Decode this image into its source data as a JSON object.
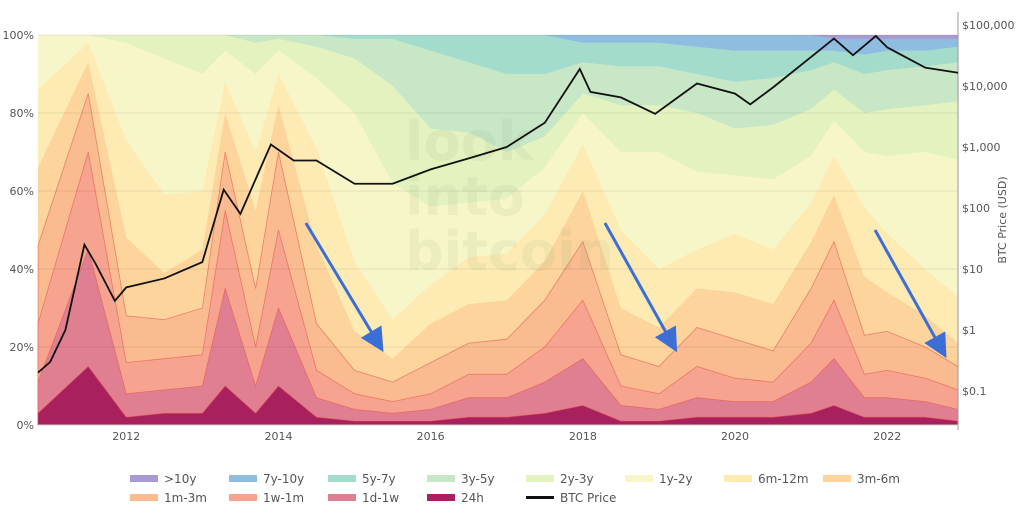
{
  "chart_data": {
    "type": "area",
    "stacked": true,
    "watermark": "look into bitcoin",
    "x_ticks": [
      "2012",
      "2014",
      "2016",
      "2018",
      "2020",
      "2022"
    ],
    "xlim": [
      2010.84,
      2022.93
    ],
    "y_left": {
      "ticks": [
        "0%",
        "20%",
        "40%",
        "60%",
        "80%",
        "100%"
      ],
      "range": [
        0,
        100
      ]
    },
    "y_right": {
      "label": "BTC Price (USD)",
      "scale": "log",
      "ticks": [
        "$0.1",
        "$1",
        "$10",
        "$100",
        "$1,000",
        "$10,000",
        "$100,000"
      ]
    },
    "grid": true,
    "legend_position": "bottom",
    "bands": [
      {
        "name": "24h",
        "color": "#a8215e"
      },
      {
        "name": "1d-1w",
        "color": "#e07f92"
      },
      {
        "name": "1w-1m",
        "color": "#f6a38f"
      },
      {
        "name": "1m-3m",
        "color": "#f9bb8f"
      },
      {
        "name": "3m-6m",
        "color": "#fcd49c"
      },
      {
        "name": "6m-12m",
        "color": "#fdebb3"
      },
      {
        "name": "1y-2y",
        "color": "#f7f6c9"
      },
      {
        "name": "2y-3y",
        "color": "#e4f2c0"
      },
      {
        "name": "3y-5y",
        "color": "#c7e7c6"
      },
      {
        "name": "5y-7y",
        "color": "#a3dbcc"
      },
      {
        "name": "7y-10y",
        "color": "#8fbde0"
      },
      {
        "name": ">10y",
        "color": "#a99bd2"
      }
    ],
    "dates": [
      2010.84,
      2011.5,
      2012.0,
      2012.5,
      2013.0,
      2013.3,
      2013.7,
      2014.0,
      2014.5,
      2015.0,
      2015.5,
      2016.0,
      2016.5,
      2017.0,
      2017.5,
      2018.0,
      2018.5,
      2019.0,
      2019.5,
      2020.0,
      2020.5,
      2021.0,
      2021.3,
      2021.7,
      2022.0,
      2022.5,
      2022.93
    ],
    "band_pct": [
      [
        3,
        8,
        15,
        20,
        20,
        20,
        14,
        0,
        0,
        0,
        0,
        0
      ],
      [
        15,
        30,
        25,
        15,
        8,
        5,
        2,
        0,
        0,
        0,
        0,
        0
      ],
      [
        2,
        6,
        8,
        12,
        20,
        25,
        25,
        2,
        0,
        0,
        0,
        0
      ],
      [
        3,
        6,
        8,
        10,
        12,
        20,
        35,
        6,
        0,
        0,
        0,
        0
      ],
      [
        3,
        7,
        8,
        12,
        15,
        15,
        30,
        10,
        0,
        0,
        0,
        0
      ],
      [
        10,
        25,
        20,
        15,
        10,
        8,
        8,
        4,
        0,
        0,
        0,
        0
      ],
      [
        3,
        7,
        10,
        15,
        20,
        15,
        20,
        8,
        2,
        0,
        0,
        0
      ],
      [
        10,
        20,
        20,
        20,
        12,
        8,
        6,
        3,
        1,
        0,
        0,
        0
      ],
      [
        2,
        5,
        7,
        12,
        20,
        25,
        18,
        8,
        3,
        0,
        0,
        0
      ],
      [
        1,
        3,
        4,
        6,
        10,
        18,
        38,
        14,
        5,
        1,
        0,
        0
      ],
      [
        1,
        2,
        3,
        5,
        6,
        10,
        35,
        25,
        12,
        1,
        0,
        0
      ],
      [
        1,
        3,
        4,
        8,
        10,
        10,
        20,
        20,
        20,
        4,
        0,
        0
      ],
      [
        2,
        5,
        6,
        8,
        10,
        12,
        14,
        18,
        18,
        7,
        0,
        0
      ],
      [
        2,
        5,
        6,
        9,
        10,
        12,
        14,
        12,
        20,
        10,
        0,
        0
      ],
      [
        3,
        8,
        9,
        12,
        10,
        12,
        12,
        8,
        16,
        10,
        0,
        0
      ],
      [
        5,
        12,
        15,
        15,
        13,
        12,
        8,
        5,
        8,
        5,
        2,
        0
      ],
      [
        1,
        4,
        5,
        8,
        12,
        20,
        20,
        12,
        10,
        6,
        2,
        0
      ],
      [
        1,
        3,
        4,
        7,
        10,
        15,
        30,
        12,
        10,
        6,
        2,
        0
      ],
      [
        2,
        5,
        8,
        10,
        10,
        10,
        20,
        15,
        10,
        7,
        3,
        0
      ],
      [
        2,
        4,
        6,
        10,
        12,
        15,
        15,
        12,
        12,
        8,
        4,
        0
      ],
      [
        2,
        4,
        5,
        8,
        12,
        14,
        18,
        14,
        12,
        7,
        4,
        0
      ],
      [
        3,
        8,
        10,
        14,
        12,
        10,
        12,
        12,
        10,
        5,
        4,
        0
      ],
      [
        5,
        12,
        15,
        15,
        12,
        10,
        9,
        8,
        7,
        3,
        3,
        1
      ],
      [
        2,
        5,
        6,
        10,
        15,
        18,
        14,
        10,
        10,
        5,
        4,
        1
      ],
      [
        2,
        5,
        7,
        10,
        10,
        15,
        20,
        12,
        10,
        5,
        3,
        1
      ],
      [
        2,
        4,
        6,
        8,
        8,
        12,
        30,
        12,
        10,
        4,
        3,
        1
      ],
      [
        1,
        3,
        5,
        6,
        6,
        12,
        35,
        15,
        10,
        4,
        2,
        1
      ]
    ],
    "btc_price": {
      "name": "BTC Price",
      "color": "#111111",
      "points": [
        [
          2010.84,
          0.2
        ],
        [
          2011.0,
          0.3
        ],
        [
          2011.2,
          1
        ],
        [
          2011.45,
          25
        ],
        [
          2011.6,
          12
        ],
        [
          2011.85,
          3
        ],
        [
          2012.0,
          5
        ],
        [
          2012.5,
          7
        ],
        [
          2013.0,
          13
        ],
        [
          2013.28,
          200
        ],
        [
          2013.5,
          80
        ],
        [
          2013.9,
          1100
        ],
        [
          2014.2,
          600
        ],
        [
          2014.5,
          600
        ],
        [
          2015.0,
          250
        ],
        [
          2015.5,
          250
        ],
        [
          2016.0,
          430
        ],
        [
          2016.5,
          650
        ],
        [
          2017.0,
          1000
        ],
        [
          2017.5,
          2500
        ],
        [
          2017.96,
          19000
        ],
        [
          2018.1,
          8000
        ],
        [
          2018.5,
          6500
        ],
        [
          2018.95,
          3500
        ],
        [
          2019.5,
          11000
        ],
        [
          2020.0,
          7500
        ],
        [
          2020.2,
          5000
        ],
        [
          2020.5,
          9500
        ],
        [
          2021.0,
          30000
        ],
        [
          2021.3,
          60000
        ],
        [
          2021.55,
          32000
        ],
        [
          2021.85,
          66000
        ],
        [
          2022.0,
          43000
        ],
        [
          2022.5,
          20000
        ],
        [
          2022.93,
          16500
        ]
      ]
    },
    "annotations": [
      {
        "type": "arrow",
        "color": "#3b6fd6",
        "from": [
          2014.36,
          51.8
        ],
        "to": [
          2015.34,
          20
        ]
      },
      {
        "type": "arrow",
        "color": "#3b6fd6",
        "from": [
          2018.29,
          51.8
        ],
        "to": [
          2019.2,
          20
        ]
      },
      {
        "type": "arrow",
        "color": "#3b6fd6",
        "from": [
          2021.84,
          50
        ],
        "to": [
          2022.74,
          18.5
        ]
      }
    ],
    "legend": [
      ">10y",
      "7y-10y",
      "5y-7y",
      "3y-5y",
      "2y-3y",
      "1y-2y",
      "6m-12m",
      "3m-6m",
      "1m-3m",
      "1w-1m",
      "1d-1w",
      "24h",
      "BTC Price"
    ]
  }
}
